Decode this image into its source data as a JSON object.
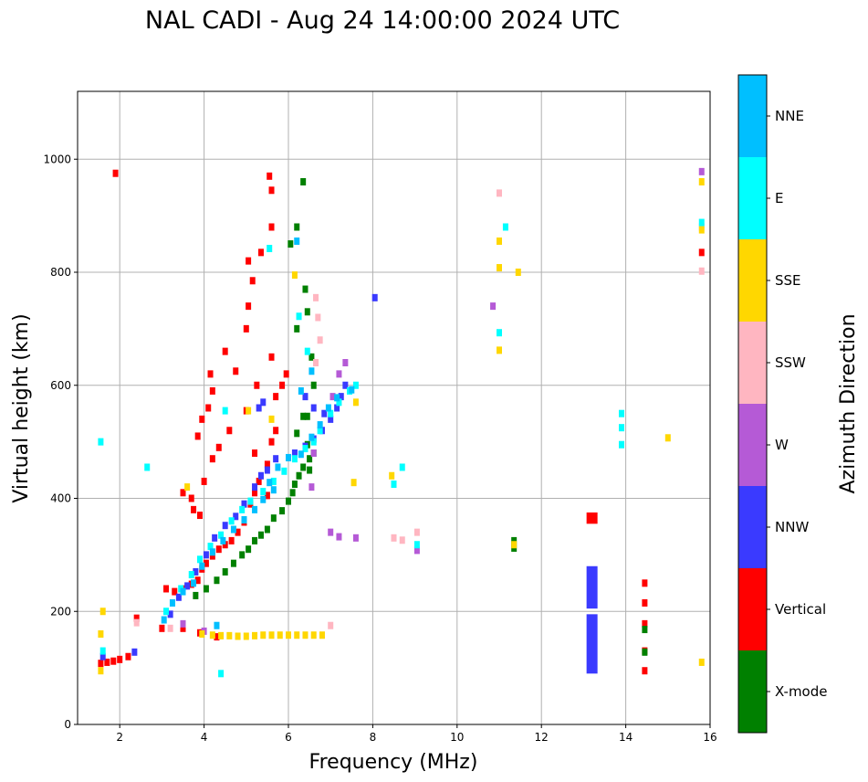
{
  "chart_data": {
    "type": "scatter",
    "title": "NAL CADI - Aug 24 14:00:00 2024 UTC",
    "xlabel": "Frequency (MHz)",
    "ylabel": "Virtual height (km)",
    "xlim": [
      1,
      16
    ],
    "ylim": [
      0,
      1120
    ],
    "x_ticks": [
      2,
      4,
      6,
      8,
      10,
      12,
      14,
      16
    ],
    "y_ticks": [
      0,
      200,
      400,
      600,
      800,
      1000
    ],
    "grid": true,
    "colorbar": {
      "title": "Azimuth Direction",
      "categories": [
        {
          "name": "X-mode",
          "color": "#008000"
        },
        {
          "name": "Vertical",
          "color": "#ff0000"
        },
        {
          "name": "NNW",
          "color": "#3a3aff"
        },
        {
          "name": "W",
          "color": "#b55ad6"
        },
        {
          "name": "SSW",
          "color": "#ffb6c1"
        },
        {
          "name": "SSE",
          "color": "#ffd700"
        },
        {
          "name": "E",
          "color": "#00ffff"
        },
        {
          "name": "NNE",
          "color": "#00bfff"
        }
      ]
    },
    "series": [
      {
        "name": "Vertical",
        "points": [
          [
            1.55,
            108
          ],
          [
            1.7,
            110
          ],
          [
            1.85,
            112
          ],
          [
            2.0,
            115
          ],
          [
            2.2,
            120
          ],
          [
            2.4,
            188
          ],
          [
            3.0,
            170
          ],
          [
            3.1,
            240
          ],
          [
            3.3,
            235
          ],
          [
            3.5,
            240
          ],
          [
            3.7,
            248
          ],
          [
            3.85,
            255
          ],
          [
            3.95,
            275
          ],
          [
            4.05,
            285
          ],
          [
            4.2,
            298
          ],
          [
            4.35,
            310
          ],
          [
            4.5,
            318
          ],
          [
            4.65,
            325
          ],
          [
            4.8,
            340
          ],
          [
            4.95,
            358
          ],
          [
            5.1,
            390
          ],
          [
            5.2,
            410
          ],
          [
            3.5,
            410
          ],
          [
            3.7,
            400
          ],
          [
            3.75,
            380
          ],
          [
            3.9,
            370
          ],
          [
            4.0,
            430
          ],
          [
            4.2,
            470
          ],
          [
            4.35,
            490
          ],
          [
            4.6,
            520
          ],
          [
            3.85,
            510
          ],
          [
            4.1,
            560
          ],
          [
            4.2,
            590
          ],
          [
            4.15,
            620
          ],
          [
            4.5,
            660
          ],
          [
            4.75,
            625
          ],
          [
            5.0,
            700
          ],
          [
            5.05,
            740
          ],
          [
            5.15,
            785
          ],
          [
            5.35,
            835
          ],
          [
            5.6,
            880
          ],
          [
            5.6,
            945
          ],
          [
            5.55,
            970
          ],
          [
            3.95,
            540
          ],
          [
            5.3,
            430
          ],
          [
            5.5,
            460
          ],
          [
            5.6,
            500
          ],
          [
            5.7,
            520
          ],
          [
            5.7,
            580
          ],
          [
            5.85,
            600
          ],
          [
            5.95,
            620
          ],
          [
            5.6,
            650
          ],
          [
            5.25,
            600
          ],
          [
            5.0,
            555
          ],
          [
            5.2,
            480
          ],
          [
            5.5,
            405
          ],
          [
            1.9,
            975
          ],
          [
            3.5,
            170
          ],
          [
            3.9,
            162
          ],
          [
            4.3,
            155
          ],
          [
            13.2,
            365
          ],
          [
            14.45,
            250
          ],
          [
            14.45,
            215
          ],
          [
            14.45,
            178
          ],
          [
            14.45,
            130
          ],
          [
            14.45,
            95
          ],
          [
            15.8,
            835
          ],
          [
            5.05,
            820
          ]
        ]
      },
      {
        "name": "X-mode",
        "points": [
          [
            3.8,
            228
          ],
          [
            4.05,
            240
          ],
          [
            4.3,
            255
          ],
          [
            4.5,
            270
          ],
          [
            4.7,
            285
          ],
          [
            4.9,
            300
          ],
          [
            5.05,
            310
          ],
          [
            5.2,
            325
          ],
          [
            5.35,
            335
          ],
          [
            5.5,
            345
          ],
          [
            5.65,
            365
          ],
          [
            5.85,
            378
          ],
          [
            6.0,
            395
          ],
          [
            6.1,
            410
          ],
          [
            6.15,
            425
          ],
          [
            6.25,
            440
          ],
          [
            6.35,
            455
          ],
          [
            6.5,
            470
          ],
          [
            6.6,
            480
          ],
          [
            6.45,
            495
          ],
          [
            6.05,
            850
          ],
          [
            6.2,
            880
          ],
          [
            6.35,
            960
          ],
          [
            6.4,
            770
          ],
          [
            6.45,
            730
          ],
          [
            6.2,
            700
          ],
          [
            6.55,
            650
          ],
          [
            6.6,
            600
          ],
          [
            6.45,
            545
          ],
          [
            6.5,
            450
          ],
          [
            11.35,
            325
          ],
          [
            11.35,
            312
          ],
          [
            14.45,
            168
          ],
          [
            14.45,
            128
          ],
          [
            6.2,
            515
          ],
          [
            6.35,
            545
          ]
        ]
      },
      {
        "name": "NNW",
        "points": [
          [
            3.2,
            195
          ],
          [
            3.4,
            225
          ],
          [
            3.6,
            245
          ],
          [
            3.8,
            270
          ],
          [
            4.05,
            300
          ],
          [
            4.25,
            330
          ],
          [
            4.5,
            352
          ],
          [
            4.75,
            368
          ],
          [
            4.95,
            390
          ],
          [
            5.2,
            420
          ],
          [
            5.35,
            440
          ],
          [
            5.5,
            450
          ],
          [
            5.7,
            470
          ],
          [
            6.15,
            480
          ],
          [
            6.4,
            492
          ],
          [
            6.6,
            505
          ],
          [
            6.8,
            520
          ],
          [
            7.0,
            540
          ],
          [
            7.15,
            560
          ],
          [
            7.25,
            580
          ],
          [
            7.35,
            600
          ],
          [
            6.4,
            580
          ],
          [
            6.6,
            560
          ],
          [
            6.85,
            550
          ],
          [
            5.3,
            560
          ],
          [
            5.4,
            570
          ],
          [
            8.05,
            755
          ],
          [
            2.35,
            128
          ],
          [
            1.6,
            120
          ],
          [
            13.2,
            150
          ],
          [
            13.2,
            245
          ]
        ]
      },
      {
        "name": "W",
        "points": [
          [
            6.6,
            480
          ],
          [
            6.55,
            420
          ],
          [
            7.0,
            340
          ],
          [
            7.2,
            332
          ],
          [
            7.6,
            330
          ],
          [
            9.05,
            308
          ],
          [
            7.05,
            580
          ],
          [
            7.2,
            620
          ],
          [
            7.35,
            640
          ],
          [
            15.8,
            978
          ],
          [
            10.85,
            740
          ],
          [
            3.5,
            178
          ],
          [
            4.0,
            165
          ]
        ]
      },
      {
        "name": "SSW",
        "points": [
          [
            6.65,
            755
          ],
          [
            6.7,
            720
          ],
          [
            6.75,
            680
          ],
          [
            6.65,
            640
          ],
          [
            8.5,
            330
          ],
          [
            8.7,
            326
          ],
          [
            9.05,
            340
          ],
          [
            11.0,
            940
          ],
          [
            15.8,
            880
          ],
          [
            15.8,
            802
          ],
          [
            2.4,
            180
          ],
          [
            7.0,
            175
          ],
          [
            3.2,
            170
          ]
        ]
      },
      {
        "name": "SSE",
        "points": [
          [
            1.55,
            160
          ],
          [
            1.55,
            95
          ],
          [
            1.6,
            200
          ],
          [
            3.95,
            160
          ],
          [
            4.2,
            158
          ],
          [
            4.4,
            157
          ],
          [
            4.6,
            157
          ],
          [
            4.8,
            156
          ],
          [
            5.0,
            156
          ],
          [
            5.2,
            157
          ],
          [
            5.4,
            158
          ],
          [
            5.6,
            158
          ],
          [
            5.8,
            158
          ],
          [
            6.0,
            158
          ],
          [
            6.2,
            158
          ],
          [
            6.4,
            158
          ],
          [
            6.6,
            158
          ],
          [
            6.8,
            158
          ],
          [
            3.6,
            420
          ],
          [
            5.05,
            555
          ],
          [
            5.6,
            540
          ],
          [
            8.45,
            440
          ],
          [
            7.55,
            428
          ],
          [
            7.6,
            570
          ],
          [
            15.0,
            507
          ],
          [
            15.8,
            960
          ],
          [
            15.8,
            875
          ],
          [
            15.8,
            110
          ],
          [
            11.0,
            855
          ],
          [
            11.0,
            808
          ],
          [
            11.45,
            800
          ],
          [
            11.0,
            662
          ],
          [
            6.15,
            795
          ],
          [
            11.35,
            318
          ]
        ]
      },
      {
        "name": "E",
        "points": [
          [
            3.1,
            200
          ],
          [
            3.45,
            240
          ],
          [
            3.7,
            265
          ],
          [
            3.9,
            292
          ],
          [
            4.15,
            315
          ],
          [
            4.4,
            335
          ],
          [
            4.65,
            360
          ],
          [
            4.9,
            380
          ],
          [
            5.1,
            395
          ],
          [
            5.4,
            412
          ],
          [
            5.65,
            430
          ],
          [
            5.9,
            448
          ],
          [
            6.15,
            470
          ],
          [
            6.4,
            488
          ],
          [
            6.6,
            500
          ],
          [
            6.75,
            520
          ],
          [
            7.0,
            550
          ],
          [
            7.2,
            570
          ],
          [
            7.45,
            590
          ],
          [
            7.6,
            600
          ],
          [
            8.5,
            425
          ],
          [
            8.7,
            455
          ],
          [
            9.05,
            318
          ],
          [
            13.9,
            550
          ],
          [
            13.9,
            525
          ],
          [
            13.9,
            495
          ],
          [
            15.8,
            888
          ],
          [
            11.15,
            880
          ],
          [
            11.0,
            693
          ],
          [
            4.4,
            90
          ],
          [
            1.55,
            500
          ],
          [
            2.65,
            455
          ],
          [
            5.55,
            842
          ],
          [
            6.25,
            722
          ],
          [
            6.45,
            660
          ],
          [
            1.6,
            130
          ],
          [
            4.5,
            555
          ]
        ]
      },
      {
        "name": "NNE",
        "points": [
          [
            3.05,
            185
          ],
          [
            3.25,
            215
          ],
          [
            3.5,
            235
          ],
          [
            3.75,
            250
          ],
          [
            3.95,
            280
          ],
          [
            4.2,
            305
          ],
          [
            4.45,
            325
          ],
          [
            4.7,
            345
          ],
          [
            4.95,
            362
          ],
          [
            5.2,
            380
          ],
          [
            5.4,
            398
          ],
          [
            5.55,
            428
          ],
          [
            5.75,
            455
          ],
          [
            6.0,
            472
          ],
          [
            6.3,
            478
          ],
          [
            6.55,
            508
          ],
          [
            6.75,
            530
          ],
          [
            6.95,
            560
          ],
          [
            7.15,
            578
          ],
          [
            7.5,
            592
          ],
          [
            6.3,
            590
          ],
          [
            6.55,
            625
          ],
          [
            6.2,
            855
          ],
          [
            4.3,
            175
          ],
          [
            5.65,
            415
          ]
        ]
      }
    ],
    "vertical_bars": [
      {
        "series": "NNW",
        "x": 13.2,
        "ranges": [
          [
            205,
            280
          ],
          [
            90,
            195
          ]
        ]
      },
      {
        "series": "Vertical",
        "x": 13.2,
        "ranges": [
          [
            355,
            375
          ]
        ]
      }
    ]
  }
}
